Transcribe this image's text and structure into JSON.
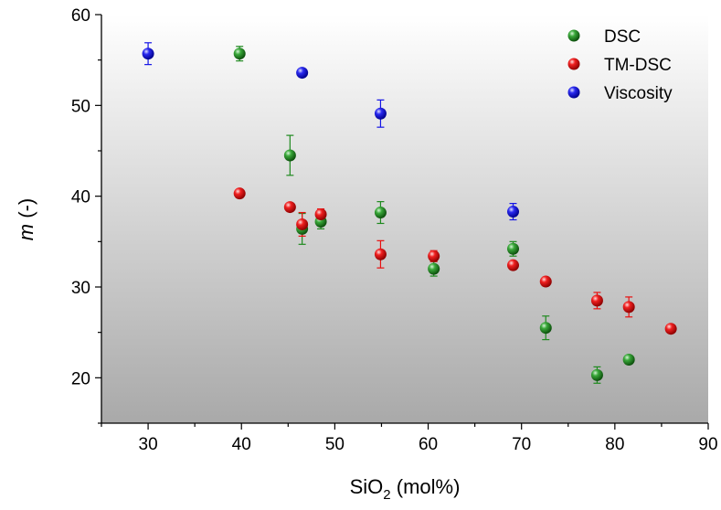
{
  "chart_data": {
    "type": "scatter",
    "xlabel": {
      "main": "SiO",
      "sub": "2",
      "rest": " (mol%)"
    },
    "ylabel": {
      "italic": "m",
      "rest": " (-)"
    },
    "xlim": [
      25,
      90
    ],
    "ylim": [
      15,
      60
    ],
    "x_ticks": [
      30,
      40,
      50,
      60,
      70,
      80,
      90
    ],
    "y_ticks": [
      20,
      30,
      40,
      50,
      60
    ],
    "legend_position": "top-right",
    "background": "vertical gradient white to grey",
    "series": [
      {
        "name": "DSC",
        "color": "#1f8a1f",
        "points": [
          {
            "x": 39.8,
            "y": 55.7,
            "err": 0.8
          },
          {
            "x": 45.2,
            "y": 44.5,
            "err": 2.2
          },
          {
            "x": 46.5,
            "y": 36.4,
            "err": 1.7
          },
          {
            "x": 48.5,
            "y": 37.2,
            "err": 0.8
          },
          {
            "x": 54.9,
            "y": 38.2,
            "err": 1.2
          },
          {
            "x": 60.6,
            "y": 32.0,
            "err": 0.8
          },
          {
            "x": 69.1,
            "y": 34.2,
            "err": 0.8
          },
          {
            "x": 72.6,
            "y": 25.5,
            "err": 1.3
          },
          {
            "x": 78.1,
            "y": 20.3,
            "err": 0.9
          },
          {
            "x": 81.5,
            "y": 22.0,
            "err": 0.4
          }
        ]
      },
      {
        "name": "TM-DSC",
        "color": "#e81010",
        "points": [
          {
            "x": 39.8,
            "y": 40.3,
            "err": 0.3
          },
          {
            "x": 45.2,
            "y": 38.8,
            "err": 0.4
          },
          {
            "x": 46.5,
            "y": 36.9,
            "err": 1.3
          },
          {
            "x": 48.5,
            "y": 38.0,
            "err": 0.6
          },
          {
            "x": 54.9,
            "y": 33.6,
            "err": 1.5
          },
          {
            "x": 60.6,
            "y": 33.4,
            "err": 0.6
          },
          {
            "x": 69.1,
            "y": 32.4,
            "err": 0.4
          },
          {
            "x": 72.6,
            "y": 30.6,
            "err": 0.4
          },
          {
            "x": 78.1,
            "y": 28.5,
            "err": 0.9
          },
          {
            "x": 81.5,
            "y": 27.8,
            "err": 1.1
          },
          {
            "x": 86.0,
            "y": 25.4,
            "err": 0.3
          }
        ]
      },
      {
        "name": "Viscosity",
        "color": "#1515e6",
        "points": [
          {
            "x": 30.0,
            "y": 55.7,
            "err": 1.2
          },
          {
            "x": 46.5,
            "y": 53.6,
            "err": 0.4
          },
          {
            "x": 54.9,
            "y": 49.1,
            "err": 1.5
          },
          {
            "x": 69.1,
            "y": 38.3,
            "err": 0.9
          }
        ]
      }
    ]
  }
}
